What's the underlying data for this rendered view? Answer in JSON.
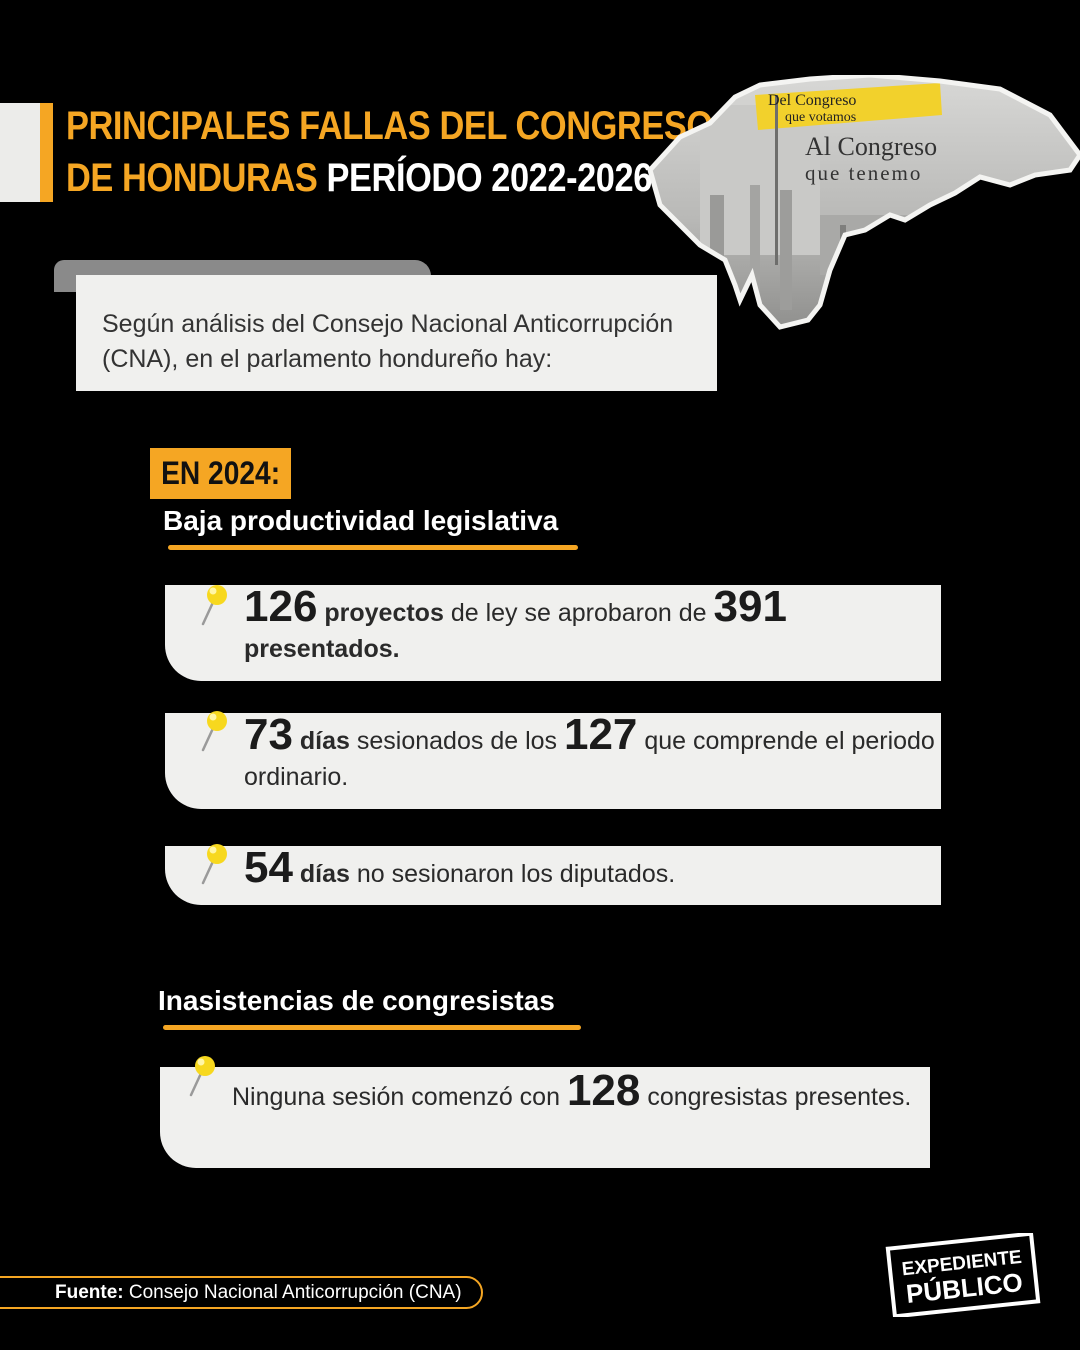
{
  "header": {
    "title_line1": "PRINCIPALES FALLAS DEL CONGRESO",
    "title_line2_orange": "DE HONDURAS",
    "title_line2_white": "PERÍODO 2022-2026"
  },
  "map_image": {
    "text_line1": "Del Congreso",
    "text_line2": "que votamos",
    "text_line3": "Al Congreso",
    "text_line4": "que tenemo"
  },
  "intro": {
    "text": "Según análisis del Consejo Nacional Anticorrupción (CNA), en el parlamento hondureño hay:"
  },
  "year_badge": "EN 2024:",
  "section1": {
    "title": "Baja productividad legislativa",
    "cards": [
      {
        "n1": "126",
        "w1": "proyectos",
        "t1": "de ley se aprobaron de",
        "n2": "391",
        "w2": "presentados."
      },
      {
        "n1": "73",
        "w1": "días",
        "t1": "sesionados de los",
        "n2": "127",
        "t2": "que comprende el periodo ordinario."
      },
      {
        "n1": "54",
        "w1": "días",
        "t1": "no sesionaron los diputados."
      }
    ]
  },
  "section2": {
    "title": "Inasistencias de congresistas",
    "cards": [
      {
        "t1": "Ninguna sesión comenzó con",
        "n1": "128",
        "t2": "congresistas presentes."
      }
    ]
  },
  "footer": {
    "source_label": "Fuente:",
    "source_text": "Consejo Nacional Anticorrupción (CNA)",
    "logo_line1": "EXPEDIENTE",
    "logo_line2": "PÚBLICO"
  },
  "colors": {
    "accent": "#f5a623",
    "background": "#000000",
    "card": "#f0f0ee"
  }
}
